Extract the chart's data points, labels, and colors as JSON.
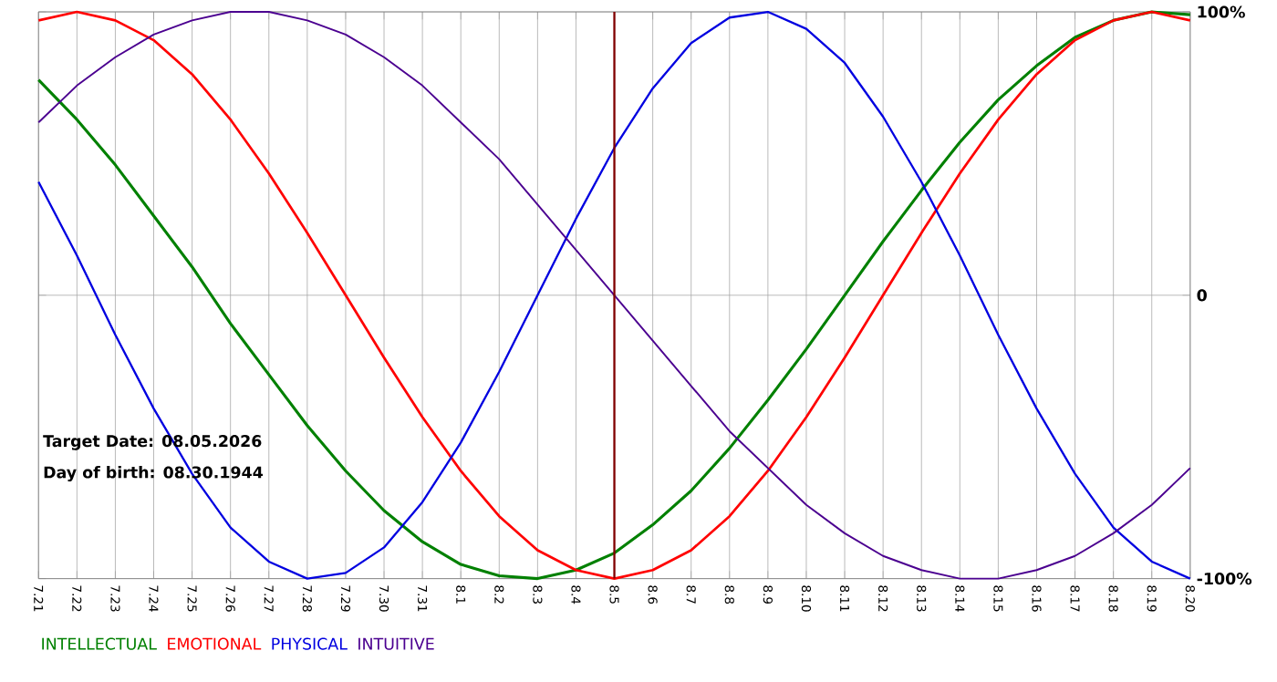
{
  "chart_data": {
    "type": "line",
    "categories": [
      "7.21",
      "7.22",
      "7.23",
      "7.24",
      "7.25",
      "7.26",
      "7.27",
      "7.28",
      "7.29",
      "7.30",
      "7.31",
      "8.1",
      "8.2",
      "8.3",
      "8.4",
      "8.5",
      "8.6",
      "8.7",
      "8.8",
      "8.9",
      "8.10",
      "8.11",
      "8.12",
      "8.13",
      "8.14",
      "8.15",
      "8.16",
      "8.17",
      "8.18",
      "8.19",
      "8.20"
    ],
    "series": [
      {
        "name": "INTELLECTUAL",
        "color": "#008000",
        "values": [
          76,
          62,
          46,
          28,
          10,
          -10,
          -28,
          -46,
          -62,
          -76,
          -87,
          -95,
          -99,
          -100,
          -97,
          -91,
          -81,
          -69,
          -54,
          -37,
          -19,
          0,
          19,
          37,
          54,
          69,
          81,
          91,
          97,
          100,
          99
        ]
      },
      {
        "name": "EMOTIONAL",
        "color": "#ff0000",
        "values": [
          97,
          100,
          97,
          90,
          78,
          62,
          43,
          22,
          0,
          -22,
          -43,
          -62,
          -78,
          -90,
          -97,
          -100,
          -97,
          -90,
          -78,
          -62,
          -43,
          -22,
          0,
          22,
          43,
          62,
          78,
          90,
          97,
          100,
          97
        ]
      },
      {
        "name": "PHYSICAL",
        "color": "#0000e0",
        "values": [
          40,
          14,
          -14,
          -40,
          -63,
          -82,
          -94,
          -100,
          -98,
          -89,
          -73,
          -52,
          -27,
          0,
          27,
          52,
          73,
          89,
          98,
          100,
          94,
          82,
          63,
          40,
          14,
          -14,
          -40,
          -63,
          -82,
          -94,
          -100
        ]
      },
      {
        "name": "INTUITIVE",
        "color": "#4b0090",
        "values": [
          61,
          74,
          84,
          92,
          97,
          100,
          100,
          97,
          92,
          84,
          74,
          61,
          48,
          32,
          16,
          0,
          -16,
          -32,
          -48,
          -61,
          -74,
          -84,
          -92,
          -97,
          -100,
          -100,
          -97,
          -92,
          -84,
          -74,
          -61
        ]
      }
    ],
    "ylim": [
      -100,
      100
    ],
    "yticks": [
      {
        "value": 100,
        "label": "100%"
      },
      0,
      {
        "value": -100,
        "label": "-100%"
      }
    ],
    "ref_lines": [
      {
        "axis": "x",
        "value": "8.5",
        "color": "#800000"
      }
    ],
    "annotations": [
      "Target Date: 08.05.2026",
      "Day of birth: 08.30.1944"
    ],
    "grid": true,
    "legend": "bottom",
    "marker": "none",
    "line_style": "solid"
  }
}
